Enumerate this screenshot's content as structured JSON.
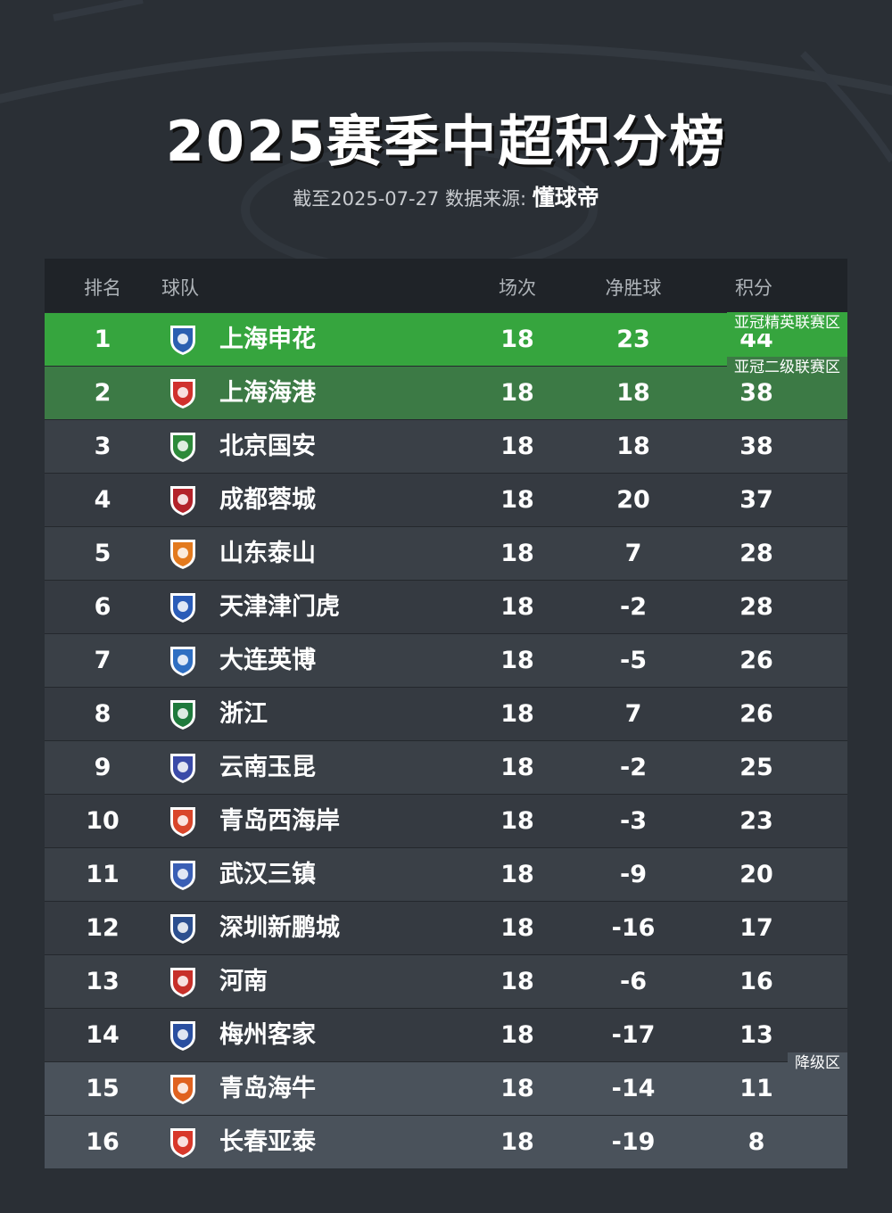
{
  "title": "2025赛季中超积分榜",
  "subtitle": {
    "prefix": "截至2025-07-27 数据来源: ",
    "brand": "懂球帝"
  },
  "columns": {
    "rank": "排名",
    "team": "球队",
    "played": "场次",
    "goal_diff": "净胜球",
    "points": "积分"
  },
  "zones": {
    "elite": "亚冠精英联赛区",
    "two": "亚冠二级联赛区",
    "relegation": "降级区"
  },
  "colors": {
    "elite_zone": "#36a53e",
    "two_zone": "#3c7a45",
    "relegation_zone": "#4a525b",
    "background": "#2a2f35"
  },
  "rows": [
    {
      "rank": "1",
      "team": "上海申花",
      "played": "18",
      "gd": "23",
      "pts": "44",
      "logo": "shenhua-logo",
      "color": "#2b5fb0"
    },
    {
      "rank": "2",
      "team": "上海海港",
      "played": "18",
      "gd": "18",
      "pts": "38",
      "logo": "haigang-logo",
      "color": "#d0312d"
    },
    {
      "rank": "3",
      "team": "北京国安",
      "played": "18",
      "gd": "18",
      "pts": "38",
      "logo": "guoan-logo",
      "color": "#2d8a3a"
    },
    {
      "rank": "4",
      "team": "成都蓉城",
      "played": "18",
      "gd": "20",
      "pts": "37",
      "logo": "rongcheng-logo",
      "color": "#b3222a"
    },
    {
      "rank": "5",
      "team": "山东泰山",
      "played": "18",
      "gd": "7",
      "pts": "28",
      "logo": "taishan-logo",
      "color": "#e37a1e"
    },
    {
      "rank": "6",
      "team": "天津津门虎",
      "played": "18",
      "gd": "-2",
      "pts": "28",
      "logo": "jinmenhu-logo",
      "color": "#2a5cb8"
    },
    {
      "rank": "7",
      "team": "大连英博",
      "played": "18",
      "gd": "-5",
      "pts": "26",
      "logo": "yingbo-logo",
      "color": "#2f6fc2"
    },
    {
      "rank": "8",
      "team": "浙江",
      "played": "18",
      "gd": "7",
      "pts": "26",
      "logo": "zhejiang-logo",
      "color": "#1f7a3c"
    },
    {
      "rank": "9",
      "team": "云南玉昆",
      "played": "18",
      "gd": "-2",
      "pts": "25",
      "logo": "yukun-logo",
      "color": "#3a4aa8"
    },
    {
      "rank": "10",
      "team": "青岛西海岸",
      "played": "18",
      "gd": "-3",
      "pts": "23",
      "logo": "xihaian-logo",
      "color": "#d9462b"
    },
    {
      "rank": "11",
      "team": "武汉三镇",
      "played": "18",
      "gd": "-9",
      "pts": "20",
      "logo": "sanzhen-logo",
      "color": "#3a5fb5"
    },
    {
      "rank": "12",
      "team": "深圳新鹏城",
      "played": "18",
      "gd": "-16",
      "pts": "17",
      "logo": "xinpengcheng-logo",
      "color": "#2c4f8f"
    },
    {
      "rank": "13",
      "team": "河南",
      "played": "18",
      "gd": "-6",
      "pts": "16",
      "logo": "henan-logo",
      "color": "#c7302a"
    },
    {
      "rank": "14",
      "team": "梅州客家",
      "played": "18",
      "gd": "-17",
      "pts": "13",
      "logo": "kejia-logo",
      "color": "#2a4fa0"
    },
    {
      "rank": "15",
      "team": "青岛海牛",
      "played": "18",
      "gd": "-14",
      "pts": "11",
      "logo": "hainiu-logo",
      "color": "#e0621f"
    },
    {
      "rank": "16",
      "team": "长春亚泰",
      "played": "18",
      "gd": "-19",
      "pts": "8",
      "logo": "yatai-logo",
      "color": "#d8382a"
    }
  ]
}
